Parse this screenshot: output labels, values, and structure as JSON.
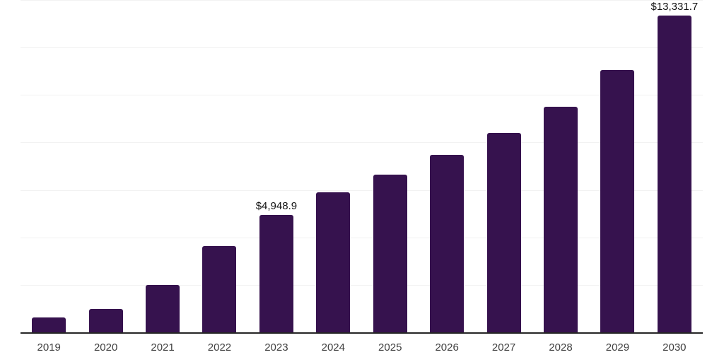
{
  "chart_data": {
    "type": "bar",
    "title": "",
    "xlabel": "",
    "ylabel": "",
    "categories": [
      "2019",
      "2020",
      "2021",
      "2022",
      "2023",
      "2024",
      "2025",
      "2026",
      "2027",
      "2028",
      "2029",
      "2030"
    ],
    "values": [
      630,
      990,
      2000,
      3640,
      4948.9,
      5910,
      6650,
      7490,
      8410,
      9510,
      11060,
      13331.7
    ],
    "value_labels": [
      {
        "index": 4,
        "text": "$4,948.9"
      },
      {
        "index": 11,
        "text": "$13,331.7"
      }
    ],
    "ylim": [
      0,
      14000
    ],
    "gridline_interval": 2000,
    "grid": true,
    "legend": false,
    "colors": {
      "bar": "#36124E",
      "gridline": "#F2F2F2",
      "axis_line": "#262626",
      "tick_label": "#404040",
      "value_label": "#111111",
      "background": "#FFFFFF"
    }
  }
}
